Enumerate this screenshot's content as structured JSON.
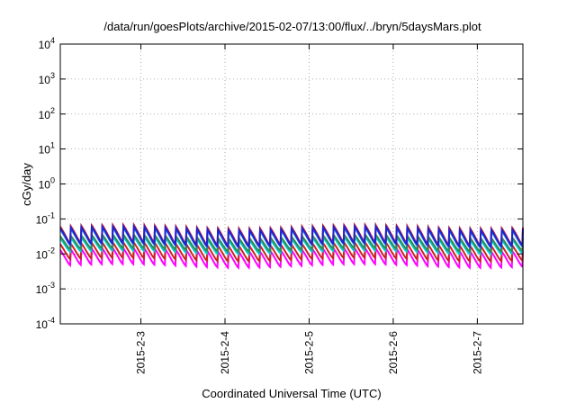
{
  "chart_data": {
    "type": "line",
    "title": "/data/run/goesPlots/archive/2015-02-07/13:00/flux/../bryn/5daysMars.plot",
    "xlabel": "Coordinated Universal Time (UTC)",
    "ylabel": "cGy/day",
    "yscale": "log",
    "ylim": [
      0.0001,
      10000
    ],
    "y_ticks": [
      {
        "base": "10",
        "exp": "-4",
        "value": 0.0001
      },
      {
        "base": "10",
        "exp": "-3",
        "value": 0.001
      },
      {
        "base": "10",
        "exp": "-2",
        "value": 0.01
      },
      {
        "base": "10",
        "exp": "-1",
        "value": 0.1
      },
      {
        "base": "10",
        "exp": "0",
        "value": 1
      },
      {
        "base": "10",
        "exp": "1",
        "value": 10
      },
      {
        "base": "10",
        "exp": "2",
        "value": 100
      },
      {
        "base": "10",
        "exp": "3",
        "value": 1000
      },
      {
        "base": "10",
        "exp": "4",
        "value": 10000
      }
    ],
    "xlim": [
      "2015-02-02 01:00",
      "2015-02-07 13:00"
    ],
    "x_ticks": [
      "2015-2-3",
      "2015-2-4",
      "2015-2-5",
      "2015-2-6",
      "2015-2-7"
    ],
    "grid": true,
    "period_hours": 3,
    "series": [
      {
        "color": "#ff00ff",
        "peak": 0.013,
        "trough": 0.0045
      },
      {
        "color": "#cc2222",
        "peak": 0.019,
        "trough": 0.0068
      },
      {
        "color": "#00cccc",
        "peak": 0.028,
        "trough": 0.011
      },
      {
        "color": "#2e8b57",
        "peak": 0.032,
        "trough": 0.013
      },
      {
        "color": "#1e90ff",
        "peak": 0.05,
        "trough": 0.017
      },
      {
        "color": "#dd2222",
        "peak": 0.06,
        "trough": 0.019
      },
      {
        "color": "#2222cc",
        "peak": 0.055,
        "trough": 0.018
      }
    ]
  }
}
